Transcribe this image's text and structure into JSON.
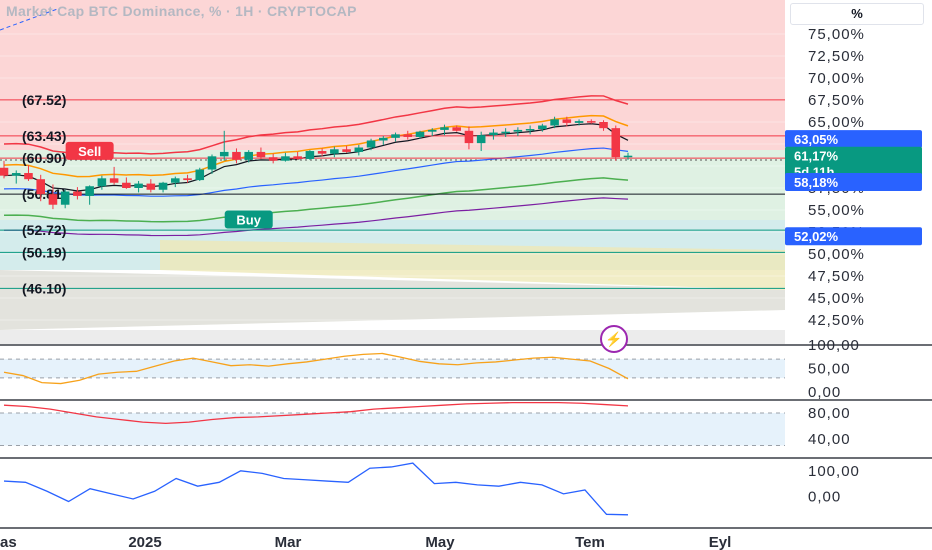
{
  "header": {
    "title": "Market Cap BTC Dominance, % · 1H · CRYPTOCAP",
    "unit_button": "%"
  },
  "icons": {
    "alert": "lightning-icon"
  },
  "colors": {
    "up": "#089981",
    "down": "#f23645",
    "accent_blue": "#2962ff",
    "rsi": "#f7a21b",
    "osc2": "#f23645",
    "osc3": "#2962ff"
  },
  "chart_data": [
    {
      "type": "candlestick",
      "ylabel": "%",
      "ylim": [
        41.5,
        77.5
      ],
      "y_ticks": [
        "42,50%",
        "45,00%",
        "47,50%",
        "50,00%",
        "52,50%",
        "55,00%",
        "57,50%",
        "60,00%",
        "62,50%",
        "65,00%",
        "67,50%",
        "70,00%",
        "72,50%",
        "75,00%"
      ],
      "x_ticks": [
        "as",
        "2025",
        "Mar",
        "May",
        "Tem",
        "Eyl"
      ],
      "candles": [
        {
          "o": 59.8,
          "h": 60.6,
          "l": 58.6,
          "c": 58.9
        },
        {
          "o": 58.9,
          "h": 59.5,
          "l": 58.0,
          "c": 59.2
        },
        {
          "o": 59.2,
          "h": 60.1,
          "l": 58.3,
          "c": 58.5
        },
        {
          "o": 58.5,
          "h": 59.0,
          "l": 56.0,
          "c": 56.8
        },
        {
          "o": 56.8,
          "h": 57.9,
          "l": 55.1,
          "c": 55.6
        },
        {
          "o": 55.6,
          "h": 57.3,
          "l": 55.2,
          "c": 57.1
        },
        {
          "o": 57.1,
          "h": 57.6,
          "l": 56.2,
          "c": 56.6
        },
        {
          "o": 56.6,
          "h": 57.8,
          "l": 55.6,
          "c": 57.7
        },
        {
          "o": 57.7,
          "h": 58.9,
          "l": 57.3,
          "c": 58.6
        },
        {
          "o": 58.6,
          "h": 59.9,
          "l": 57.9,
          "c": 58.1
        },
        {
          "o": 58.1,
          "h": 58.7,
          "l": 57.4,
          "c": 57.5
        },
        {
          "o": 57.5,
          "h": 58.3,
          "l": 57.0,
          "c": 58.0
        },
        {
          "o": 58.0,
          "h": 58.5,
          "l": 57.0,
          "c": 57.3
        },
        {
          "o": 57.3,
          "h": 58.2,
          "l": 57.0,
          "c": 58.1
        },
        {
          "o": 58.1,
          "h": 58.8,
          "l": 57.6,
          "c": 58.6
        },
        {
          "o": 58.6,
          "h": 59.0,
          "l": 58.1,
          "c": 58.4
        },
        {
          "o": 58.4,
          "h": 59.8,
          "l": 58.3,
          "c": 59.6
        },
        {
          "o": 59.6,
          "h": 61.3,
          "l": 59.1,
          "c": 61.1
        },
        {
          "o": 61.1,
          "h": 64.0,
          "l": 60.6,
          "c": 61.6
        },
        {
          "o": 61.6,
          "h": 62.0,
          "l": 60.3,
          "c": 60.7
        },
        {
          "o": 60.7,
          "h": 61.8,
          "l": 60.4,
          "c": 61.6
        },
        {
          "o": 61.6,
          "h": 62.1,
          "l": 60.8,
          "c": 61.0
        },
        {
          "o": 61.0,
          "h": 61.4,
          "l": 60.3,
          "c": 60.6
        },
        {
          "o": 60.6,
          "h": 61.5,
          "l": 60.5,
          "c": 61.1
        },
        {
          "o": 61.1,
          "h": 61.6,
          "l": 60.7,
          "c": 60.8
        },
        {
          "o": 60.8,
          "h": 61.8,
          "l": 60.7,
          "c": 61.7
        },
        {
          "o": 61.7,
          "h": 62.0,
          "l": 61.1,
          "c": 61.4
        },
        {
          "o": 61.4,
          "h": 62.2,
          "l": 61.0,
          "c": 61.9
        },
        {
          "o": 61.9,
          "h": 62.3,
          "l": 61.5,
          "c": 61.6
        },
        {
          "o": 61.6,
          "h": 62.4,
          "l": 61.2,
          "c": 62.1
        },
        {
          "o": 62.1,
          "h": 63.1,
          "l": 61.8,
          "c": 62.9
        },
        {
          "o": 62.9,
          "h": 63.4,
          "l": 62.4,
          "c": 63.2
        },
        {
          "o": 63.2,
          "h": 63.8,
          "l": 62.8,
          "c": 63.6
        },
        {
          "o": 63.6,
          "h": 64.0,
          "l": 63.0,
          "c": 63.3
        },
        {
          "o": 63.3,
          "h": 64.0,
          "l": 63.1,
          "c": 63.9
        },
        {
          "o": 63.9,
          "h": 64.3,
          "l": 63.4,
          "c": 64.1
        },
        {
          "o": 64.1,
          "h": 64.7,
          "l": 63.5,
          "c": 64.4
        },
        {
          "o": 64.4,
          "h": 64.6,
          "l": 63.9,
          "c": 64.0
        },
        {
          "o": 64.0,
          "h": 64.5,
          "l": 61.9,
          "c": 62.6
        },
        {
          "o": 62.6,
          "h": 63.9,
          "l": 61.7,
          "c": 63.5
        },
        {
          "o": 63.5,
          "h": 64.2,
          "l": 63.0,
          "c": 63.8
        },
        {
          "o": 63.8,
          "h": 64.3,
          "l": 63.3,
          "c": 63.9
        },
        {
          "o": 63.9,
          "h": 64.4,
          "l": 63.4,
          "c": 64.1
        },
        {
          "o": 64.1,
          "h": 64.6,
          "l": 63.6,
          "c": 64.2
        },
        {
          "o": 64.2,
          "h": 64.8,
          "l": 63.9,
          "c": 64.6
        },
        {
          "o": 64.6,
          "h": 65.6,
          "l": 64.3,
          "c": 65.3
        },
        {
          "o": 65.3,
          "h": 65.6,
          "l": 64.5,
          "c": 64.9
        },
        {
          "o": 64.9,
          "h": 65.3,
          "l": 64.6,
          "c": 65.1
        },
        {
          "o": 65.1,
          "h": 65.3,
          "l": 64.8,
          "c": 65.0
        },
        {
          "o": 65.0,
          "h": 65.2,
          "l": 64.0,
          "c": 64.3
        },
        {
          "o": 64.3,
          "h": 64.6,
          "l": 60.6,
          "c": 61.0
        },
        {
          "o": 61.0,
          "h": 61.5,
          "l": 60.7,
          "c": 61.17
        }
      ],
      "levels": [
        {
          "label": "(67.52)",
          "value": 67.52,
          "color": "#f23645"
        },
        {
          "label": "(63.43)",
          "value": 63.43,
          "color": "#f23645"
        },
        {
          "label": "(60.90)",
          "value": 60.9,
          "color": "#f23645"
        },
        {
          "label": "(56.81)",
          "value": 56.81,
          "color": "#131722"
        },
        {
          "label": "(52.72)",
          "value": 52.72,
          "color": "#089981"
        },
        {
          "label": "(50.19)",
          "value": 50.19,
          "color": "#089981"
        },
        {
          "label": "(46.10)",
          "value": 46.1,
          "color": "#089981"
        }
      ],
      "signals": [
        {
          "label": "Sell",
          "value": 61.6,
          "index": 7
        },
        {
          "label": "Buy",
          "value": 53.8,
          "index": 20
        }
      ],
      "price_tags": [
        {
          "label": "63,05%",
          "value": 63.05,
          "color": "#2962ff"
        },
        {
          "label": "61,17%",
          "sub": "5d 11h",
          "value": 61.17,
          "color": "#089981"
        },
        {
          "label": "58,18%",
          "value": 58.18,
          "color": "#2962ff"
        },
        {
          "label": "52,02%",
          "value": 52.02,
          "color": "#2962ff"
        }
      ]
    },
    {
      "type": "line",
      "ylim": [
        0,
        100
      ],
      "y_ticks": [
        "0,00",
        "50,00",
        "100,00"
      ],
      "band": [
        30,
        70
      ],
      "values": [
        42,
        35,
        20,
        18,
        25,
        38,
        42,
        44,
        55,
        66,
        72,
        64,
        56,
        58,
        55,
        60,
        64,
        70,
        76,
        80,
        82,
        74,
        65,
        60,
        58,
        62,
        64,
        68,
        72,
        74,
        70,
        66,
        50,
        28
      ]
    },
    {
      "type": "line",
      "ylim": [
        20,
        100
      ],
      "y_ticks": [
        "40,00",
        "80,00"
      ],
      "band": [
        30,
        80
      ],
      "values": [
        92,
        90,
        86,
        80,
        74,
        70,
        66,
        64,
        66,
        70,
        73,
        74,
        76,
        78,
        80,
        82,
        86,
        88,
        90,
        92,
        94,
        95,
        96,
        96,
        96,
        95,
        93,
        91
      ]
    },
    {
      "type": "line",
      "ylim": [
        -100,
        150
      ],
      "y_ticks": [
        "0,00",
        "100,00"
      ],
      "values": [
        60,
        55,
        20,
        -20,
        30,
        10,
        -10,
        20,
        70,
        40,
        55,
        100,
        90,
        70,
        65,
        60,
        55,
        110,
        115,
        130,
        50,
        55,
        45,
        40,
        55,
        45,
        10,
        25,
        -70,
        -72
      ]
    }
  ]
}
